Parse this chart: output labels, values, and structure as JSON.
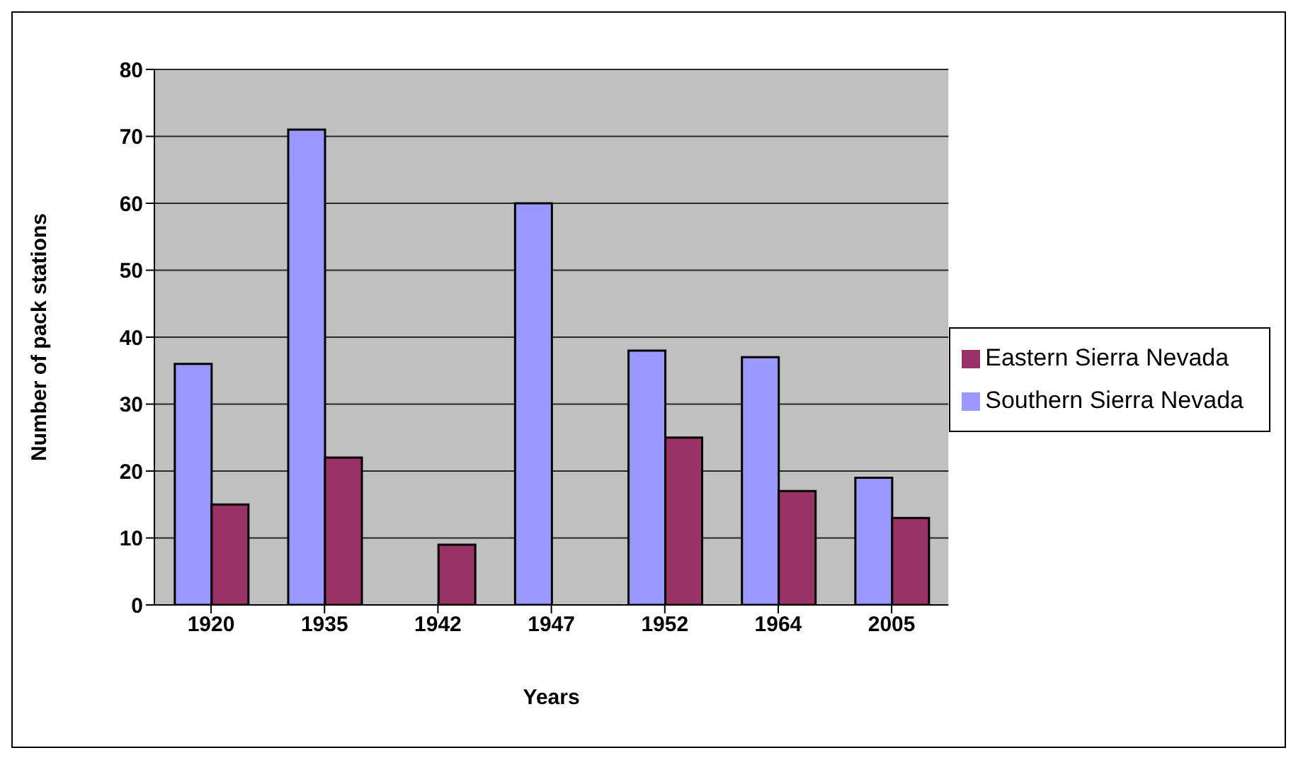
{
  "chart_data": {
    "type": "bar",
    "xlabel": "Years",
    "ylabel": "Number of pack stations",
    "categories": [
      "1920",
      "1935",
      "1942",
      "1947",
      "1952",
      "1964",
      "2005"
    ],
    "series": [
      {
        "name": "Southern Sierra Nevada",
        "color": "#9999ff",
        "values": [
          36,
          71,
          null,
          60,
          38,
          37,
          19
        ]
      },
      {
        "name": "Eastern Sierra Nevada",
        "color": "#993366",
        "values": [
          15,
          22,
          9,
          null,
          25,
          17,
          13
        ]
      }
    ],
    "ylim": [
      0,
      80
    ],
    "yticks": [
      0,
      10,
      20,
      30,
      40,
      50,
      60,
      70,
      80
    ],
    "grid": "y",
    "legend": "right"
  }
}
